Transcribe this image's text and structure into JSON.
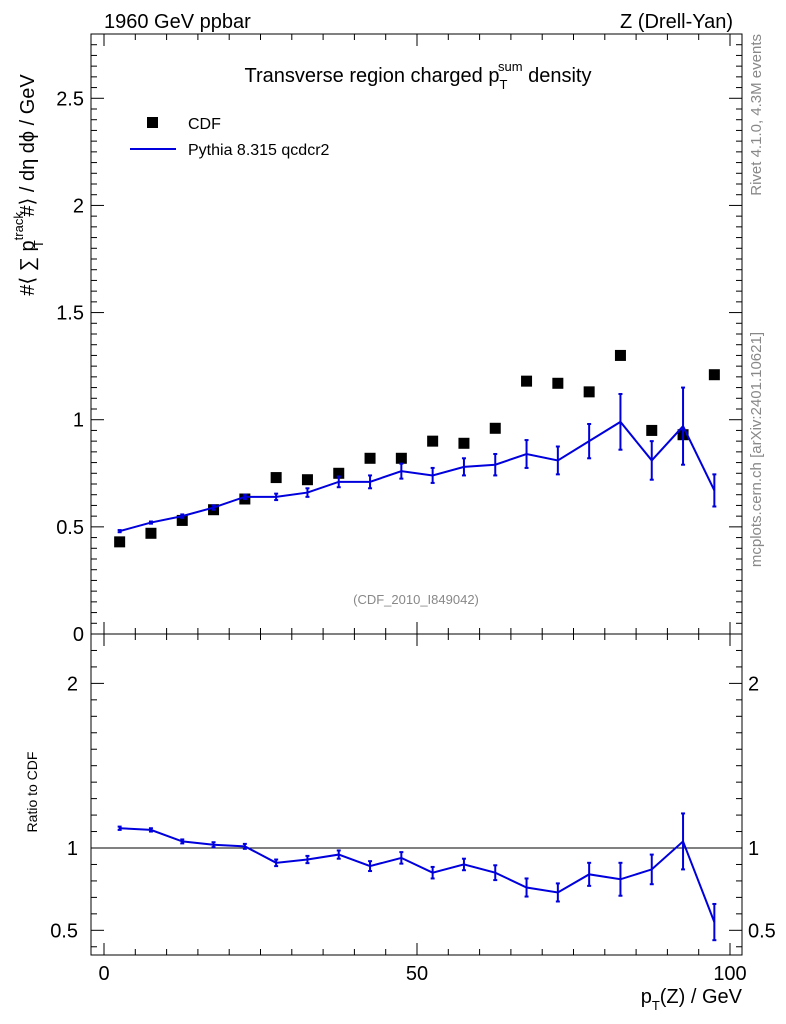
{
  "header": {
    "left": "1960 GeV ppbar",
    "right": "Z (Drell-Yan)"
  },
  "side_labels": {
    "rivet": "Rivet 4.1.0,  4.3M events",
    "mcplots": "mcplots.cern.ch [arXiv:2401.10621]"
  },
  "chart_data": [
    {
      "type": "scatter",
      "title_parts": {
        "pre": "Transverse region charged p",
        "sub": "T",
        "sup": "sum",
        "post": " density"
      },
      "ylabel_parts": {
        "a": "#⟨ ∑ p",
        "sup": "track",
        "sub": "T",
        "b": " #⟩ / dη dϕ / GeV"
      },
      "watermark": "(CDF_2010_I849042)",
      "legend": [
        {
          "name": "CDF",
          "marker": "square",
          "color": "#000000"
        },
        {
          "name": "Pythia 8.315 qcdcr2",
          "marker": "line",
          "color": "#0000dd"
        }
      ],
      "ylim": [
        0,
        2.8
      ],
      "xlim": [
        0,
        100
      ],
      "yticks": [
        0,
        0.5,
        1,
        1.5,
        2,
        2.5
      ],
      "ytick_labels": [
        "0",
        "0.5",
        "1",
        "1.5",
        "2",
        "2.5"
      ],
      "series": [
        {
          "name": "CDF",
          "x": [
            2.5,
            7.5,
            12.5,
            17.5,
            22.5,
            27.5,
            32.5,
            37.5,
            42.5,
            47.5,
            52.5,
            57.5,
            62.5,
            67.5,
            72.5,
            77.5,
            82.5,
            87.5,
            92.5,
            97.5
          ],
          "values": [
            0.43,
            0.47,
            0.53,
            0.58,
            0.63,
            0.73,
            0.72,
            0.75,
            0.82,
            0.82,
            0.9,
            0.89,
            0.96,
            1.18,
            1.17,
            1.13,
            1.3,
            0.95,
            0.93,
            1.21
          ]
        },
        {
          "name": "Pythia 8.315 qcdcr2",
          "x": [
            2.5,
            7.5,
            12.5,
            17.5,
            22.5,
            27.5,
            32.5,
            37.5,
            42.5,
            47.5,
            52.5,
            57.5,
            62.5,
            67.5,
            72.5,
            77.5,
            82.5,
            87.5,
            92.5,
            97.5
          ],
          "values": [
            0.48,
            0.52,
            0.55,
            0.59,
            0.64,
            0.64,
            0.66,
            0.71,
            0.71,
            0.76,
            0.74,
            0.78,
            0.79,
            0.84,
            0.81,
            0.9,
            0.99,
            0.81,
            0.97,
            0.67
          ],
          "errors": [
            0.005,
            0.005,
            0.008,
            0.01,
            0.01,
            0.015,
            0.02,
            0.025,
            0.03,
            0.035,
            0.035,
            0.04,
            0.05,
            0.065,
            0.065,
            0.08,
            0.13,
            0.09,
            0.18,
            0.075
          ]
        }
      ]
    },
    {
      "type": "line",
      "ylabel": "Ratio to CDF",
      "xlabel_parts": {
        "pre": "p",
        "sub": "T",
        "post": "(Z) / GeV"
      },
      "ylim": [
        0.35,
        2.3
      ],
      "xlim": [
        0,
        100
      ],
      "yticks": [
        0.5,
        1,
        2
      ],
      "ytick_labels": [
        "0.5",
        "1",
        "2"
      ],
      "xticks": [
        0,
        50,
        100
      ],
      "xtick_labels": [
        "0",
        "50",
        "100"
      ],
      "reference": 1,
      "series": [
        {
          "name": "Pythia 8.315 qcdcr2",
          "x": [
            2.5,
            7.5,
            12.5,
            17.5,
            22.5,
            27.5,
            32.5,
            37.5,
            42.5,
            47.5,
            52.5,
            57.5,
            62.5,
            67.5,
            72.5,
            77.5,
            82.5,
            87.5,
            92.5,
            97.5
          ],
          "values": [
            1.12,
            1.11,
            1.04,
            1.02,
            1.01,
            0.91,
            0.93,
            0.96,
            0.89,
            0.94,
            0.85,
            0.9,
            0.85,
            0.76,
            0.73,
            0.84,
            0.81,
            0.87,
            1.04,
            0.55
          ],
          "errors": [
            0.01,
            0.01,
            0.012,
            0.015,
            0.015,
            0.02,
            0.022,
            0.025,
            0.03,
            0.035,
            0.035,
            0.035,
            0.045,
            0.055,
            0.055,
            0.07,
            0.1,
            0.09,
            0.17,
            0.11
          ]
        }
      ]
    }
  ]
}
